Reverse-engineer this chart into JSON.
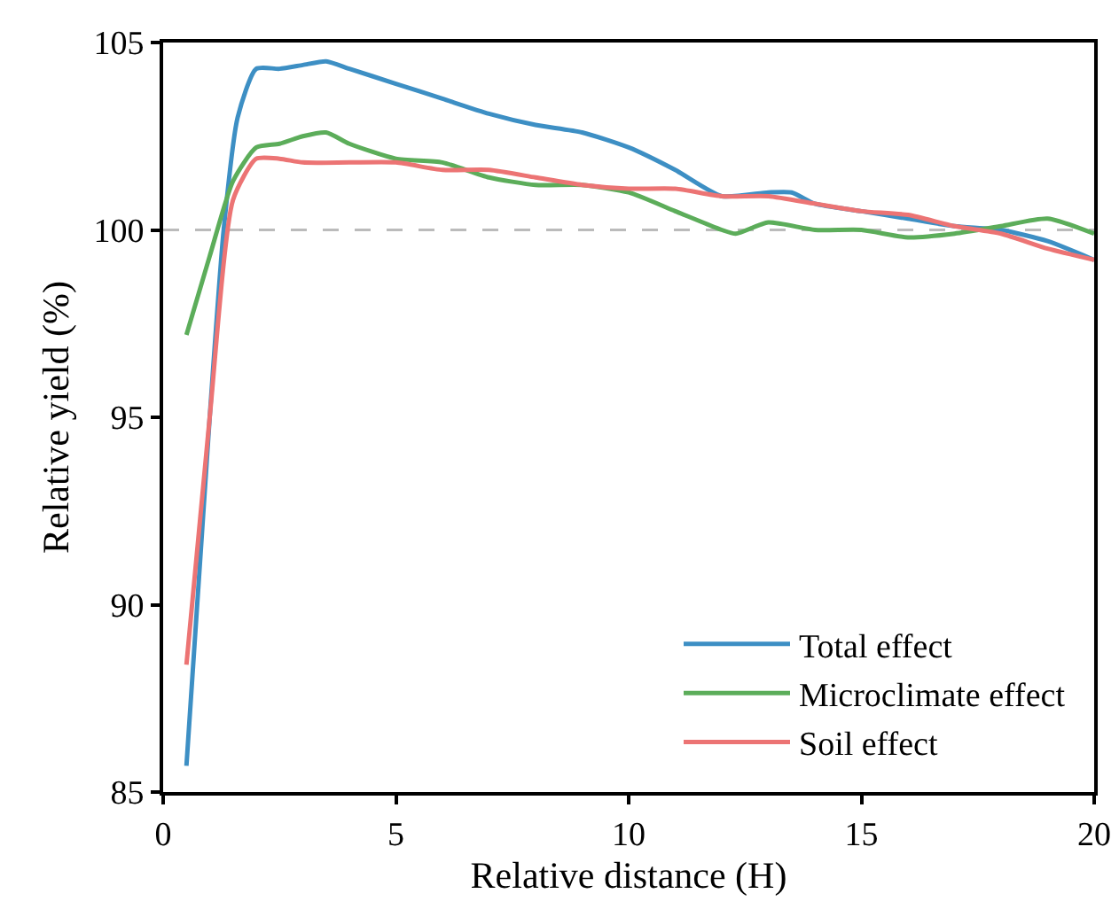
{
  "chart_data": {
    "type": "line",
    "xlabel": "Relative distance (H)",
    "ylabel": "Relative yield (%)",
    "xlim": [
      0,
      20
    ],
    "xticks": [
      0,
      5,
      10,
      15,
      20
    ],
    "ylim": [
      85,
      105
    ],
    "yticks": [
      85,
      90,
      95,
      100,
      105
    ],
    "grid": false,
    "legend": "bottom right",
    "marker": "none",
    "line_style": "solid",
    "ref_lines": [
      {
        "axis": "y",
        "value": 100,
        "label": null,
        "color": "#bbbbbb",
        "line_style": "dashed"
      }
    ],
    "series": [
      {
        "name": "Total effect",
        "color": "#3d8fc4",
        "x": [
          0.5,
          1,
          1.3,
          1.6,
          2,
          2.5,
          3,
          3.5,
          4,
          5,
          6,
          7,
          8,
          9,
          10,
          11,
          12,
          13,
          13.5,
          14,
          15,
          16,
          17,
          18,
          19,
          20
        ],
        "values": [
          85.7,
          95,
          100,
          103,
          104.3,
          104.3,
          104.4,
          104.5,
          104.3,
          103.9,
          103.5,
          103.1,
          102.8,
          102.6,
          102.2,
          101.6,
          100.9,
          101,
          101,
          100.7,
          100.5,
          100.3,
          100.1,
          100,
          99.7,
          99.2
        ]
      },
      {
        "name": "Microclimate effect",
        "color": "#5cad5a",
        "x": [
          0.5,
          1,
          1.5,
          2,
          2.5,
          3,
          3.5,
          4,
          5,
          6,
          7,
          8,
          9,
          10,
          11,
          12,
          12.3,
          13,
          14,
          15,
          16,
          17,
          18,
          19,
          20
        ],
        "values": [
          97.2,
          99.3,
          101.3,
          102.2,
          102.3,
          102.5,
          102.6,
          102.3,
          101.9,
          101.8,
          101.4,
          101.2,
          101.2,
          101,
          100.5,
          100,
          99.9,
          100.2,
          100,
          100,
          99.8,
          99.9,
          100.1,
          100.3,
          99.9
        ]
      },
      {
        "name": "Soil effect",
        "color": "#ec7474",
        "x": [
          0.5,
          1,
          1.5,
          2,
          2.5,
          3,
          4,
          5,
          6,
          7,
          8,
          9,
          10,
          11,
          12,
          13,
          14,
          15,
          16,
          17,
          18,
          19,
          20
        ],
        "values": [
          88.4,
          95,
          100.8,
          101.9,
          101.9,
          101.8,
          101.8,
          101.8,
          101.6,
          101.6,
          101.4,
          101.2,
          101.1,
          101.1,
          100.9,
          100.9,
          100.7,
          100.5,
          100.4,
          100.1,
          99.9,
          99.5,
          99.2
        ]
      }
    ]
  }
}
